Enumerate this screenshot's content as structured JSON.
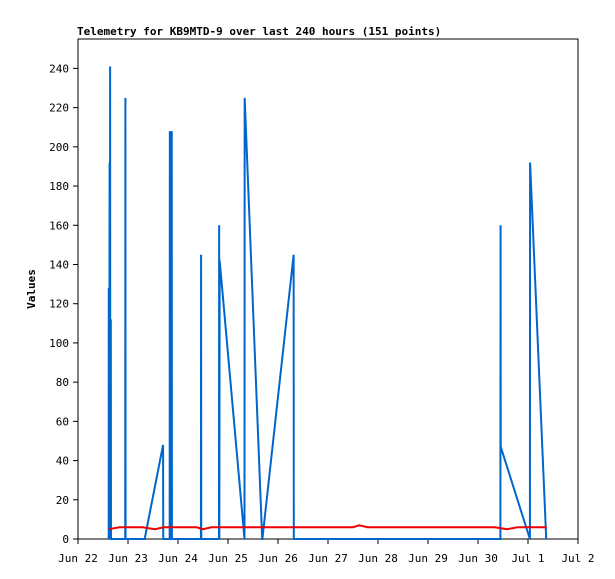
{
  "chart_data": {
    "type": "line",
    "title": "Telemetry for KB9MTD-9 over last 240 hours (151 points)",
    "ylabel": "Values",
    "xlabel": "",
    "ylim": [
      0,
      255
    ],
    "xlim": [
      "Jun 22",
      "Jul 2"
    ],
    "yticks": [
      0,
      20,
      40,
      60,
      80,
      100,
      120,
      140,
      160,
      180,
      200,
      220,
      240
    ],
    "xticks": [
      "Jun 22",
      "Jun 23",
      "Jun 24",
      "Jun 25",
      "Jun 26",
      "Jun 27",
      "Jun 28",
      "Jun 29",
      "Jun 30",
      "Jul 1",
      "Jul 2"
    ],
    "grid": false,
    "legend": "none",
    "series": [
      {
        "color": "#0066cc",
        "points": [
          [
            "Jun 22 14:45",
            0
          ],
          [
            "Jun 22 14:46",
            128
          ],
          [
            "Jun 22 14:50",
            0
          ],
          [
            "Jun 22 14:55",
            97
          ],
          [
            "Jun 22 15:00",
            0
          ],
          [
            "Jun 22 15:10",
            192
          ],
          [
            "Jun 22 15:15",
            0
          ],
          [
            "Jun 22 15:25",
            241
          ],
          [
            "Jun 22 15:30",
            0
          ],
          [
            "Jun 22 15:45",
            112
          ],
          [
            "Jun 22 15:50",
            0
          ],
          [
            "Jun 22 22:40",
            0
          ],
          [
            "Jun 22 22:45",
            225
          ],
          [
            "Jun 22 22:50",
            0
          ],
          [
            "Jun 23 08:00",
            0
          ],
          [
            "Jun 23 16:50",
            48
          ],
          [
            "Jun 23 16:55",
            0
          ],
          [
            "Jun 23 20:00",
            0
          ],
          [
            "Jun 23 20:05",
            208
          ],
          [
            "Jun 23 20:10",
            0
          ],
          [
            "Jun 23 20:55",
            0
          ],
          [
            "Jun 23 21:00",
            208
          ],
          [
            "Jun 23 21:05",
            0
          ],
          [
            "Jun 24 11:00",
            0
          ],
          [
            "Jun 24 11:05",
            145
          ],
          [
            "Jun 24 11:10",
            0
          ],
          [
            "Jun 24 19:40",
            0
          ],
          [
            "Jun 24 19:45",
            160
          ],
          [
            "Jun 24 19:50",
            0
          ],
          [
            "Jun 24 20:00",
            142
          ],
          [
            "Jun 25 07:55",
            0
          ],
          [
            "Jun 25 08:00",
            225
          ],
          [
            "Jun 25 16:25",
            0
          ],
          [
            "Jun 25 16:30",
            0
          ],
          [
            "Jun 26 07:30",
            145
          ],
          [
            "Jun 26 07:35",
            0
          ],
          [
            "Jun 30 10:45",
            0
          ],
          [
            "Jun 30 10:50",
            160
          ],
          [
            "Jun 30 10:55",
            47
          ],
          [
            "Jul 1 00:55",
            0
          ],
          [
            "Jul 1 01:00",
            192
          ],
          [
            "Jul 1 08:45",
            0
          ]
        ]
      },
      {
        "color": "#ee0000",
        "points": [
          [
            "Jun 22 14:45",
            5
          ],
          [
            "Jun 22 20:00",
            6
          ],
          [
            "Jun 23 07:00",
            6
          ],
          [
            "Jun 23 13:00",
            5
          ],
          [
            "Jun 23 17:00",
            6
          ],
          [
            "Jun 24 09:00",
            6
          ],
          [
            "Jun 24 12:00",
            5
          ],
          [
            "Jun 24 16:00",
            6
          ],
          [
            "Jun 27 12:00",
            6
          ],
          [
            "Jun 27 15:00",
            7
          ],
          [
            "Jun 27 19:00",
            6
          ],
          [
            "Jun 30 08:00",
            6
          ],
          [
            "Jun 30 14:00",
            5
          ],
          [
            "Jun 30 19:00",
            6
          ],
          [
            "Jul 1 09:00",
            6
          ]
        ]
      }
    ]
  }
}
